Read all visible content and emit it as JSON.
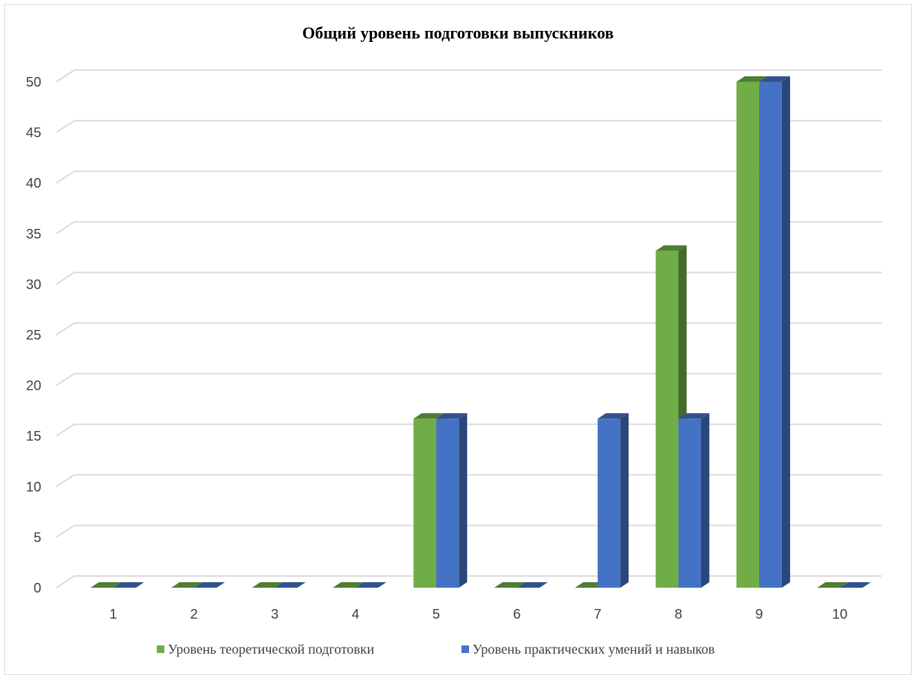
{
  "chart_data": {
    "type": "bar",
    "title": "Общий уровень подготовки выпускников",
    "xlabel": "",
    "ylabel": "",
    "categories": [
      "1",
      "2",
      "3",
      "4",
      "5",
      "6",
      "7",
      "8",
      "9",
      "10"
    ],
    "series": [
      {
        "name": "Уровень теоретической подготовки",
        "color": "#70ad47",
        "values": [
          0,
          0,
          0,
          0,
          16.7,
          0,
          0,
          33.3,
          50,
          0
        ]
      },
      {
        "name": "Уровень практических умений и навыков",
        "color": "#4472c4",
        "values": [
          0,
          0,
          0,
          0,
          16.7,
          0,
          16.7,
          16.7,
          50,
          0
        ]
      }
    ],
    "ylim": [
      0,
      50
    ],
    "yticks": [
      "0",
      "5",
      "10",
      "15",
      "20",
      "25",
      "30",
      "35",
      "40",
      "45",
      "50"
    ],
    "grid": true,
    "legend_position": "bottom",
    "style": "3d-column"
  }
}
